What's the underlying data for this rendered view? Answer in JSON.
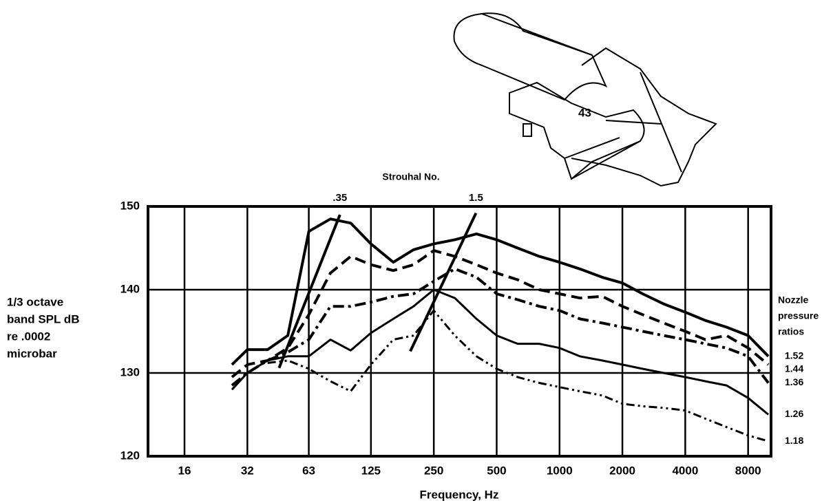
{
  "chart_data": {
    "type": "line",
    "top_axis_title": "Strouhal No.",
    "x_label": "Frequency, Hz",
    "y_label_lines": [
      "1/3 octave",
      "band SPL dB",
      "re .0002",
      "microbar"
    ],
    "legend_title_lines": [
      "Nozzle",
      "pressure",
      "ratios"
    ],
    "sketch_label": "43",
    "log_x": true,
    "grid": true,
    "xlim": [
      10.7,
      10300
    ],
    "xticks": [
      16,
      32,
      63,
      125,
      250,
      500,
      1000,
      2000,
      4000,
      8000
    ],
    "ylim": [
      120,
      150
    ],
    "yticks": [
      120,
      130,
      140,
      150
    ],
    "x": [
      27,
      32,
      40,
      50,
      63,
      80,
      100,
      125,
      160,
      200,
      250,
      315,
      400,
      500,
      630,
      800,
      1000,
      1250,
      1600,
      2000,
      2500,
      3150,
      4000,
      5000,
      6300,
      8000,
      10000
    ],
    "series": [
      {
        "name": "1.52",
        "color": "#000000",
        "style": "solid",
        "width": 4,
        "values": [
          131,
          132.8,
          132.8,
          134.5,
          147,
          148.5,
          148,
          145.5,
          143.3,
          144.8,
          145.5,
          146,
          146.7,
          146,
          145,
          144,
          143.3,
          142.5,
          141.5,
          140.8,
          139.5,
          138.3,
          137.3,
          136.3,
          135.5,
          134.5,
          132
        ]
      },
      {
        "name": "1.44",
        "color": "#000000",
        "style": "dashed",
        "width": 4,
        "values": [
          129.5,
          131,
          131.5,
          133,
          137,
          142,
          144,
          143,
          142.3,
          143,
          144.7,
          144,
          143,
          142,
          141.2,
          140,
          139.5,
          139,
          139.2,
          138,
          137,
          136,
          135,
          134,
          134.5,
          133,
          131
        ]
      },
      {
        "name": "1.36",
        "color": "#000000",
        "style": "dashdot",
        "width": 4,
        "values": [
          128.5,
          130,
          131.5,
          132.5,
          134,
          138,
          138,
          138.5,
          139.2,
          139.5,
          141,
          142.5,
          141.5,
          139.5,
          138.8,
          138,
          137.5,
          136.5,
          136,
          135.5,
          135,
          134.5,
          134,
          133.5,
          133,
          132,
          128.8
        ]
      },
      {
        "name": "1.26",
        "color": "#000000",
        "style": "solid",
        "width": 3,
        "values": [
          128,
          130,
          131.5,
          132,
          132,
          134,
          132.7,
          134.8,
          136.5,
          138,
          140,
          139,
          136.5,
          134.5,
          133.5,
          133.5,
          133,
          132,
          131.5,
          131,
          130.5,
          130,
          129.5,
          129,
          128.5,
          127,
          125
        ]
      },
      {
        "name": "1.18",
        "color": "#000000",
        "style": "dashdotdot",
        "width": 3,
        "values": [
          null,
          null,
          131.2,
          131.5,
          130.5,
          129,
          127.8,
          131,
          134,
          134.5,
          137.5,
          134.5,
          132,
          130.5,
          129.5,
          128.8,
          128.3,
          127.8,
          127.3,
          126.3,
          126,
          125.8,
          125.5,
          124.5,
          123.5,
          122.5,
          121.8
        ]
      }
    ],
    "strouhal_lines": [
      {
        "label": ".35",
        "x": [
          45.4,
          88.8
        ],
        "y": [
          130.6,
          149
        ]
      },
      {
        "label": "1.5",
        "x": [
          193,
          398
        ],
        "y": [
          132.6,
          149.2
        ]
      }
    ]
  }
}
